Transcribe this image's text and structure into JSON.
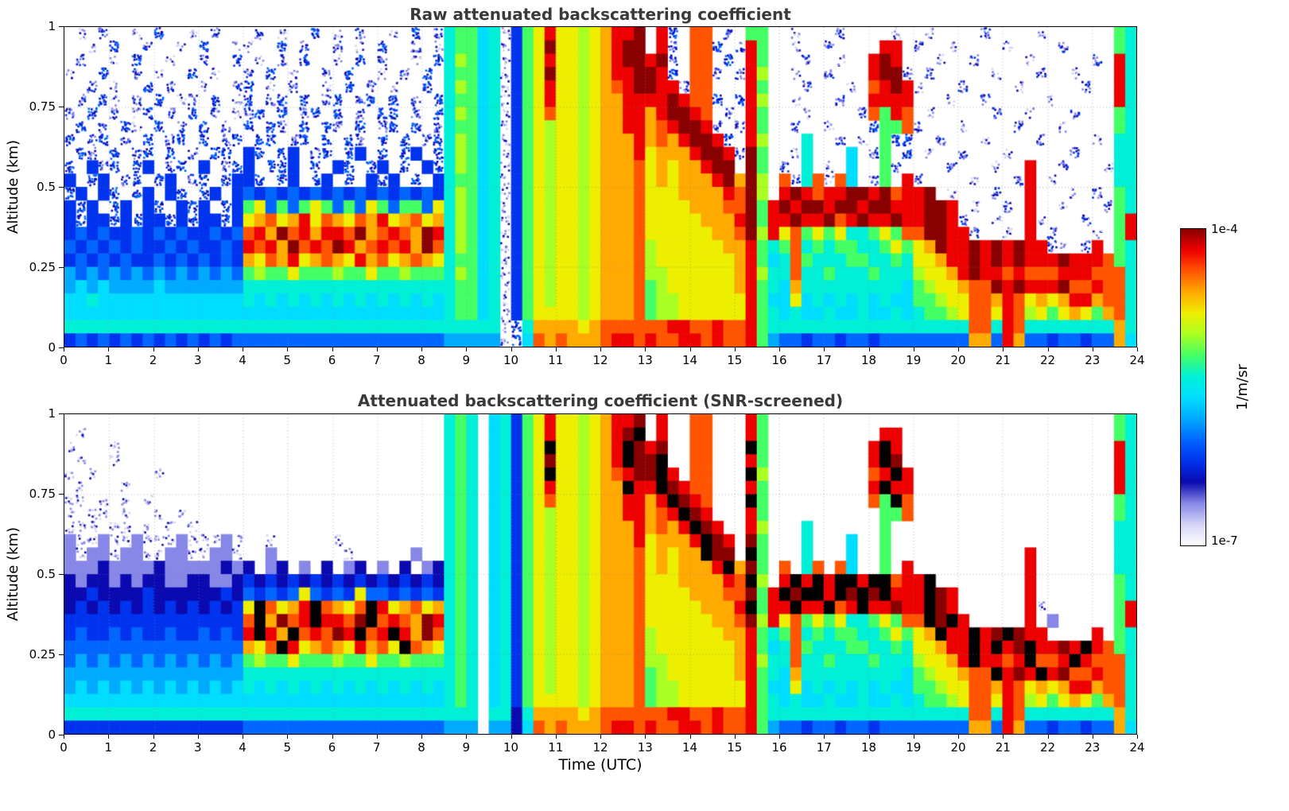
{
  "chart_data": {
    "type": "heatmap",
    "xlabel": "Time (UTC)",
    "ylabel": "Altitude (km)",
    "x_range": [
      0,
      24
    ],
    "y_range": [
      0,
      1
    ],
    "x_ticks": [
      0,
      1,
      2,
      3,
      4,
      5,
      6,
      7,
      8,
      9,
      10,
      11,
      12,
      13,
      14,
      15,
      16,
      17,
      18,
      19,
      20,
      21,
      22,
      23,
      24
    ],
    "y_ticks": [
      [
        0,
        "0"
      ],
      [
        0.25,
        "0.25"
      ],
      [
        0.5,
        "0.5"
      ],
      [
        0.75,
        "0.75"
      ],
      [
        1,
        "1"
      ]
    ],
    "colorbar": {
      "max_label": "1e-4",
      "min_label": "1e-7",
      "units": "1/m/sr",
      "scale": "log10"
    },
    "levels": {
      "chars": "0123456789abcdef",
      "log10_min": -7,
      "log10_max": -4,
      "no_data_char": ".",
      "saturated_char": "k"
    },
    "gridline_color": "#9a9a9a",
    "colormap_stops": [
      [
        0.0,
        "#ffffff"
      ],
      [
        0.067,
        "#d4d4f6"
      ],
      [
        0.133,
        "#8888e8"
      ],
      [
        0.2,
        "#0a0ab0"
      ],
      [
        0.267,
        "#0033ee"
      ],
      [
        0.333,
        "#0066ff"
      ],
      [
        0.4,
        "#00aaff"
      ],
      [
        0.467,
        "#00ddff"
      ],
      [
        0.533,
        "#00f0d8"
      ],
      [
        0.6,
        "#44ff66"
      ],
      [
        0.667,
        "#aaff22"
      ],
      [
        0.733,
        "#eeee00"
      ],
      [
        0.8,
        "#ffaa00"
      ],
      [
        0.867,
        "#ff5500"
      ],
      [
        0.933,
        "#ee0000"
      ],
      [
        1.0,
        "#880000"
      ]
    ],
    "panels": [
      {
        "title": "Raw attenuated backscattering coefficient",
        "speckle_levels": [
          1,
          2,
          3
        ],
        "rows_top_to_bottom": [
          [
            ".1.2..1.3..1.2..",
            ".2.1..3.1.2..1.3.2",
            "899781",
            "49bebbabceef",
            ".e3.dd.2",
            ".99.",
            ".1...2....1.",
            ".1....2....1......98"
          ],
          [
            "..1.3..2..1.3..1",
            "1..3.2..2.1.3..2.1",
            "899781",
            "49bfbbabceff",
            ".e2.dd3.",
            "2e9.",
            ".1..2....ee.",
            "2..1....1....2....98"
          ],
          [
            ".2..1.3..1..2..3",
            ".1.2.3..1.3.2..1.3",
            "8a9781",
            "49bebbabceff",
            "ef2.dd.3",
            ".e9.",
            "..2..1..efe.",
            "..1..2....1.....2.e8"
          ],
          [
            "1..3..2.1..3.1..",
            "2.3.1..2.3..1.2.3.",
            "899781",
            "49bfbbabceef",
            "fe3.dd2.",
            "2ea.",
            ".1..2...eff2",
            ".2.....1...2..1...e8"
          ],
          [
            "..2.1..3.2..1..2",
            "3.1.2..1.3.2.1..3.",
            "8a9781",
            "49bebbabcdef",
            "fee2dd..",
            ".e9.",
            "..2...1.defe",
            "1...2....1.....2..e8"
          ],
          [
            ".2.31.2.3.12.3.1",
            "3.23.3.23.23.3.2.3",
            "899781",
            "49bebbabccee",
            "eefedd3.",
            "3ea.",
            ".1...2..eeee",
            "...1..2.....1.....e8"
          ],
          [
            "2.3.2.13.2.3.2.1",
            "23.3.23.3.2.33.2.3",
            "8a9781",
            "49bdbbabccee",
            "ceffed.2",
            ".e9.",
            "..1....2d9ed",
            ".1.....2..1...2...98"
          ],
          [
            ".3.2.31.3.2.3.2.",
            "3.32.3.32.3.23.3.2",
            "899781",
            "49babbabccee",
            "cdeffe2.",
            "2e9.",
            ".2..1...399d",
            "2...1....2...1....98"
          ],
          [
            "3.23.2.3.23.3.23",
            ".33.23.3.32.3.3.23",
            "8a9781",
            "49babbabccce",
            "cdceffe3",
            ".ea.",
            "..8..2.1.933",
            "..2...1....2....1.88"
          ],
          [
            ".32.3.23.3.2.33.",
            "43.34.23.34.3.34.3",
            "8a9781",
            "49babbabccce",
            "bccceffe",
            "2f9.",
            ".18...7.29.3",
            ".1..2...1.....2...88"
          ],
          [
            "3.423.34.23.4.23",
            "4.334.3.43.34.3.43",
            "8a9781",
            "49babbabcccd",
            "bcbcceff",
            ".f9.",
            "2.8.1.7..92.",
            "...2...1..e..2...188"
          ],
          [
            "4.34.23.34.23.34",
            "43.34.34.3.434.3.4",
            "899781",
            "49babbabcccd",
            "bcbcccef",
            "cfa.",
            "d28d1d7.29.e",
            "2....1...2e.1.....88"
          ],
          [
            "34.43.34.43.34.4",
            "545454545454545454",
            "8a9781",
            "49babbabcccd",
            "bbbcccce",
            "dfa.",
            "efedeeffefde",
            "ef.1...2..e...1.2.98"
          ],
          [
            "434.34.43.434.34",
            "9b5959b9595b95995b",
            "8a9781",
            "49babbabcccd",
            "bbbbcccd",
            "df9e",
            "feffeffeffee",
            "effe.1..2.e..1...298"
          ],
          [
            "4344343443434434",
            "bcdbcebdcbdcebcdbc",
            "8a9781",
            "49babbabcccd",
            "bbbbbccc",
            "ef9e",
            "efeefdefeefe",
            "effe2..1..e1...2..9e"
          ],
          [
            "4545445454544545",
            "decfdeceedfcdedcfe",
            "8a9781",
            "49babbabcccd",
            "bbbbbbcc",
            "dfae",
            "bd9b9b889b9d",
            "dffee2..1.e.2...1.9e"
          ],
          [
            "5454545445454454",
            "edecfdedfecdedecfd",
            "8a9781",
            "49babbabcccd",
            "abbbbbbc",
            "ce98",
            "9d89899889b9",
            "bcfeefefefee21.2e.98"
          ],
          [
            "4545454454545454",
            "cbdcebcdcbecdbcdcb",
            "899781",
            "49babbabcccd",
            "abbbbbbb",
            "ce97",
            "8d9888998898",
            "bbceefefefeeefeeed98"
          ],
          [
            "6565656565656565",
            "9a99b999a99b99a999",
            "8a9781",
            "49babbabcccd",
            "aabbbbbb",
            "cea8",
            "8d8898889888",
            "abbcefeededddeeeddd8"
          ],
          [
            "6767666676666666",
            "888888888888888888",
            "899781",
            "49babbabcccd",
            "9abbbbbb",
            "ce98",
            "7c8888888887",
            "9abbcddfefeeefddedd8"
          ],
          [
            "7787777777777777",
            "878787878787878787",
            "899781",
            "49babbabcccd",
            "9aabbbbb",
            "be97",
            "7b7878787877",
            "99abbddcedbcbceecdd8"
          ],
          [
            "7777777777777777",
            "777777777777777777",
            "899781",
            "49bbbbabcccd",
            "9aabbbbb",
            "be98",
            "787787787787",
            "899abddbedab9bcb9cd8"
          ],
          [
            "8888888888888888",
            "888888888888888888",
            "888881",
            "38ccccbcd ddd",
            "ddeedded",
            "de98",
            "888888888888",
            "88888dd8ed88888888c8"
          ],
          [
            "4545454545454545",
            "555555555555555555",
            "666661",
            "37dcdcccdeed",
            "eddeeded",
            "de96",
            "554554554555",
            "55555cc5ec55455455c7"
          ]
        ]
      },
      {
        "title": "Attenuated backscattering coefficient (SNR-screened)",
        "speckle_levels": [
          1
        ],
        "rows_top_to_bottom": [
          [
            "................",
            "..................",
            "898.78",
            "49bebbabceef",
            ".e..dd..",
            ".e9.",
            "............",
            "..................98"
          ],
          [
            ".1..............",
            "..................",
            "898.78",
            "49bebbabcefk",
            ".e..dd..",
            ".e9.",
            ".........ee.",
            "..................98"
          ],
          [
            "1...1...........",
            "..................",
            "898.78",
            "49bkbbabcekf",
            "ef..dd..",
            ".k9.",
            "........eke.",
            "..................e8"
          ],
          [
            ".1..1...........",
            "..................",
            "898.78",
            "49bfbbabcekf",
            "fk..dd..",
            ".e9.",
            "........ekf.",
            "..................e8"
          ],
          [
            "1.1.....1.......",
            "..................",
            "898.78",
            "49bkbbabcdef",
            "fke.dd..",
            ".ka.",
            "........deke",
            "..................e8"
          ],
          [
            ".1...1..........",
            "..................",
            "898.78",
            "49bebbabccke",
            "ekfedd..",
            ".e9.",
            "........ekee",
            "..................e8"
          ],
          [
            "11.1.1.1........",
            "..................",
            "898.78",
            "49bdbbabccee",
            "cekfed..",
            ".k9.",
            "........d9kd",
            "..................98"
          ],
          [
            "1.11.1..1.1.....",
            "..................",
            "898.78",
            "49babbabccee",
            "cdekfe..",
            ".e9.",
            ".........99d",
            "..................98"
          ],
          [
            "111.11.1.1.1....",
            "..................",
            "898.78",
            "49babbabccce",
            "cdcekfe.",
            ".ea.",
            "..8......9..",
            "..................88"
          ],
          [
            "2112112111211121",
            "..1.....1.........",
            "898.78",
            "49babbabccce",
            "bcccekfe",
            ".f9.",
            "..8...7..9..",
            "..................88"
          ],
          [
            "2122122112211221",
            "..2......1.....2..",
            "898.78",
            "49babbabcccd",
            "bcbcckff",
            ".k9.",
            "..8...7..9..",
            "..........e.......88"
          ],
          [
            "2223222232222232",
            "3.23.2.3.23.2.3.23",
            "898.78",
            "49babbabcccd",
            "bcbcccek",
            "cf9.",
            "d.8d.d7..9.e",
            "..........e.......88"
          ],
          [
            "3233232332233223",
            "434343434343434343",
            "898.78",
            "49babbabcccd",
            "bbbcccce",
            "dka.",
            "ekekekkekkde",
            "ek........e.......98"
          ],
          [
            "3343333433333343",
            "54545b5454b5545454",
            "898.78",
            "49babbabcccd",
            "bbbbcccd",
            "df9e",
            "kfkkekfkfkee",
            "ekfe......e.......98"
          ],
          [
            "3434343434343434",
            "bkdbcekdcbdkebcdbc",
            "898.78",
            "49babbabcccd",
            "bbbbbccc",
            "ek9e",
            "ekeekdekeefe",
            "ekfe......e1......9e"
          ],
          [
            "4444444444444444",
            "dkcfdekeedfkdedcfe",
            "898.78",
            "49babbabcccd",
            "bbbbbbcc",
            "dfae",
            "bd9b9b889b9d",
            "dkfke.....e.2.....9e"
          ],
          [
            "4544545445445454",
            "ekeckdedfekdekecfd",
            "898.78",
            "49babbabcccd",
            "abbbbbbc",
            "ce98",
            "9d89899889b9",
            "bckeekefkfee....e.98"
          ],
          [
            "5555555555555555",
            "cbdkebcdcbecdbkdcb",
            "898.78",
            "49babbabcccd",
            "abbbbbbb",
            "ce97",
            "8d9888998898",
            "bbceekekefkeefeked98"
          ],
          [
            "5656565656565656",
            "9a99b999a99b99a999",
            "898.78",
            "49babbabcccd",
            "aabbbbbb",
            "cea8",
            "8d8898889888",
            "abbcekeedekddekeddd8"
          ],
          [
            "6666666666666666",
            "888888888888888888",
            "898.78",
            "49babbabcccd",
            "9abbbbbb",
            "ce98",
            "7c8888888887",
            "9abbcddkefekefddedd8"
          ],
          [
            "6767676767676767",
            "878787878787878787",
            "898.78",
            "49babbabcccd",
            "9aabbbbb",
            "be97",
            "7b7878787877",
            "99abbddcedbcbceecdd8"
          ],
          [
            "7777777777777777",
            "777777777777777777",
            "898.78",
            "49bbbbabcccd",
            "9aabbbbb",
            "be98",
            "787787787787",
            "899abddbedab9bcb9cd8"
          ],
          [
            "8888888888888888",
            "888888888888888888",
            "888.88",
            "38ccccbcdddd",
            "ddeedded",
            "de98",
            "888888888888",
            "88888dd8ed88888888c8"
          ],
          [
            "4444444444444444",
            "555555555555555555",
            "666.66",
            "37dcdcccdeed",
            "eddeeded",
            "de96",
            "554554554555",
            "55555cc5ec55455455c7"
          ]
        ]
      }
    ]
  }
}
